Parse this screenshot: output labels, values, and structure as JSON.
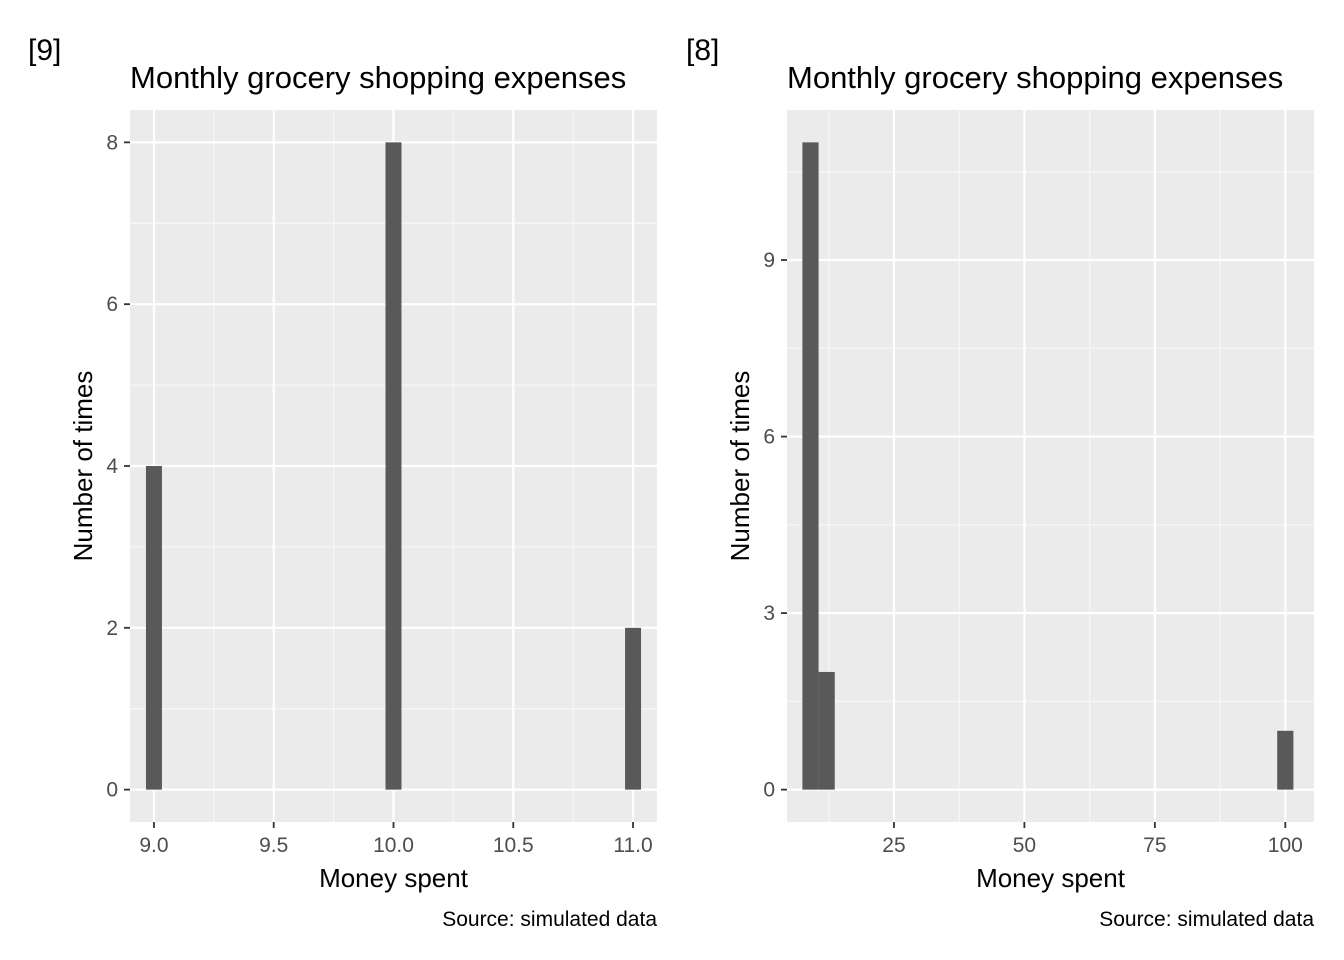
{
  "chart_data": [
    {
      "type": "bar",
      "tag": "[9]",
      "title": "Monthly grocery shopping expenses",
      "xlabel": "Money spent",
      "ylabel": "Number of times",
      "caption": "Source: simulated data",
      "bar_width": 0.0667,
      "xlim": [
        8.9,
        11.1
      ],
      "ylim": [
        -0.4,
        8.4
      ],
      "xticks": [
        9.0,
        9.5,
        10.0,
        10.5,
        11.0
      ],
      "xtick_labels": [
        "9.0",
        "9.5",
        "10.0",
        "10.5",
        "11.0"
      ],
      "yticks": [
        0,
        2,
        4,
        6,
        8
      ],
      "ytick_labels": [
        "0",
        "2",
        "4",
        "6",
        "8"
      ],
      "bars": [
        {
          "x": 9.0,
          "count": 4
        },
        {
          "x": 10.0,
          "count": 8
        },
        {
          "x": 11.0,
          "count": 2
        }
      ],
      "grid": true,
      "panel_color": "#ebebeb",
      "bar_color": "#595959"
    },
    {
      "type": "bar",
      "tag": "[8]",
      "title": "Monthly grocery shopping expenses",
      "xlabel": "Money spent",
      "ylabel": "Number of times",
      "caption": "Source: simulated data",
      "bar_width": 3.1,
      "xlim": [
        4.5,
        105.5
      ],
      "ylim": [
        -0.55,
        11.55
      ],
      "xticks": [
        25,
        50,
        75,
        100
      ],
      "xtick_labels": [
        "25",
        "50",
        "75",
        "100"
      ],
      "yticks": [
        0,
        3,
        6,
        9
      ],
      "ytick_labels": [
        "0",
        "3",
        "6",
        "9"
      ],
      "bars": [
        {
          "x": 9.0,
          "count": 11
        },
        {
          "x": 12.1,
          "count": 2
        },
        {
          "x": 100.0,
          "count": 1
        }
      ],
      "grid": true,
      "panel_color": "#ebebeb",
      "bar_color": "#595959"
    }
  ]
}
